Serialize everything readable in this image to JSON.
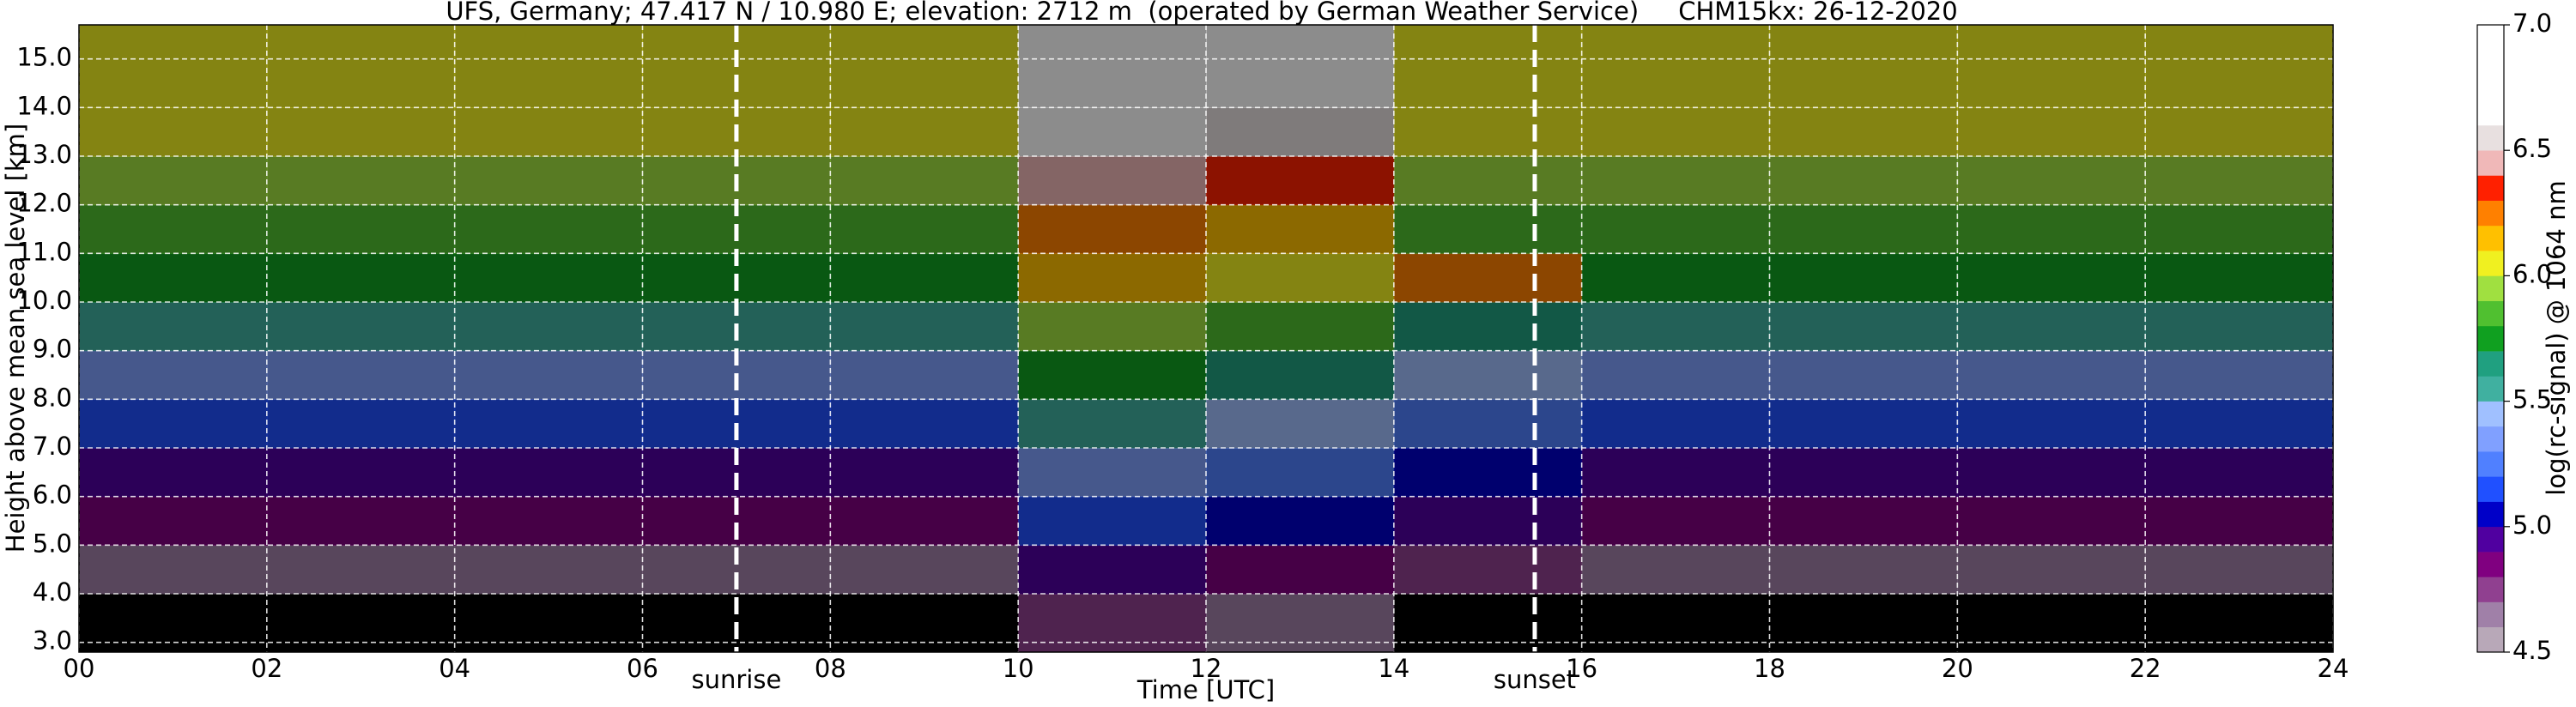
{
  "chart_data": {
    "type": "heatmap",
    "title": "UFS, Germany; 47.417 N / 10.980 E; elevation: 2712 m  (operated by German Weather Service)     CHM15kx: 26-12-2020",
    "x_label": "Time [UTC]",
    "y_label": "Height above mean sea level [km]",
    "xlim": [
      0,
      24
    ],
    "xticks": [
      {
        "value": 0,
        "label": "00"
      },
      {
        "value": 2,
        "label": "02"
      },
      {
        "value": 4,
        "label": "04"
      },
      {
        "value": 6,
        "label": "06"
      },
      {
        "value": 8,
        "label": "08"
      },
      {
        "value": 10,
        "label": "10"
      },
      {
        "value": 12,
        "label": "12"
      },
      {
        "value": 14,
        "label": "14"
      },
      {
        "value": 16,
        "label": "16"
      },
      {
        "value": 18,
        "label": "18"
      },
      {
        "value": 20,
        "label": "20"
      },
      {
        "value": 22,
        "label": "22"
      },
      {
        "value": 24,
        "label": "24"
      }
    ],
    "ylim": [
      2.8,
      15.7
    ],
    "yticks": [
      {
        "value": 3,
        "label": "3.0"
      },
      {
        "value": 4,
        "label": "4.0"
      },
      {
        "value": 5,
        "label": "5.0"
      },
      {
        "value": 6,
        "label": "6.0"
      },
      {
        "value": 7,
        "label": "7.0"
      },
      {
        "value": 8,
        "label": "8.0"
      },
      {
        "value": 9,
        "label": "9.0"
      },
      {
        "value": 10,
        "label": "10.0"
      },
      {
        "value": 11,
        "label": "11.0"
      },
      {
        "value": 12,
        "label": "12.0"
      },
      {
        "value": 13,
        "label": "13.0"
      },
      {
        "value": 14,
        "label": "14.0"
      },
      {
        "value": 15,
        "label": "15.0"
      }
    ],
    "grid": true,
    "x_edges": [
      0,
      2,
      4,
      6,
      8,
      10,
      12,
      14,
      16,
      18,
      20,
      22,
      24
    ],
    "y_edges": [
      2.8,
      4,
      5,
      6,
      7,
      8,
      9,
      10,
      11,
      12,
      13,
      14,
      15.7
    ],
    "z": [
      [
        null,
        null,
        null,
        null,
        null,
        4.7,
        4.6,
        null,
        null,
        null,
        null,
        null
      ],
      [
        4.6,
        4.6,
        4.6,
        4.6,
        4.6,
        4.9,
        4.8,
        4.7,
        4.6,
        4.6,
        4.6,
        4.6
      ],
      [
        4.8,
        4.8,
        4.8,
        4.8,
        4.8,
        5.1,
        5.0,
        4.9,
        4.8,
        4.8,
        4.8,
        4.8
      ],
      [
        4.9,
        4.9,
        4.9,
        4.9,
        4.9,
        5.3,
        5.2,
        5.0,
        4.9,
        4.9,
        4.9,
        4.9
      ],
      [
        5.1,
        5.1,
        5.1,
        5.1,
        5.1,
        5.5,
        5.4,
        5.2,
        5.1,
        5.1,
        5.1,
        5.1
      ],
      [
        5.3,
        5.3,
        5.3,
        5.3,
        5.3,
        5.7,
        5.6,
        5.4,
        5.3,
        5.3,
        5.3,
        5.3
      ],
      [
        5.5,
        5.5,
        5.5,
        5.5,
        5.5,
        5.9,
        5.8,
        5.6,
        5.5,
        5.5,
        5.5,
        5.5
      ],
      [
        5.7,
        5.7,
        5.7,
        5.7,
        5.7,
        6.1,
        6.0,
        6.2,
        5.7,
        5.7,
        5.7,
        5.7
      ],
      [
        5.8,
        5.8,
        5.8,
        5.8,
        5.8,
        6.2,
        6.1,
        5.8,
        5.8,
        5.8,
        5.8,
        5.8
      ],
      [
        5.9,
        5.9,
        5.9,
        5.9,
        5.9,
        6.4,
        6.3,
        5.9,
        5.9,
        5.9,
        5.9,
        5.9
      ],
      [
        6.0,
        6.0,
        6.0,
        6.0,
        6.0,
        6.6,
        6.5,
        6.0,
        6.0,
        6.0,
        6.0,
        6.0
      ],
      [
        6.0,
        6.0,
        6.0,
        6.0,
        6.0,
        6.8,
        6.6,
        6.0,
        6.0,
        6.0,
        6.0,
        6.0
      ]
    ],
    "annotations": [
      {
        "text": "sunrise",
        "x": 7.0
      },
      {
        "text": "sunset",
        "x": 15.5
      }
    ],
    "colorbar": {
      "label": "log(rc-signal) @ 1064 nm",
      "levels": [
        4.5,
        4.6,
        4.7,
        4.8,
        4.9,
        5.0,
        5.1,
        5.2,
        5.3,
        5.4,
        5.5,
        5.6,
        5.7,
        5.8,
        5.9,
        6.0,
        6.1,
        6.2,
        6.3,
        6.4,
        6.5,
        6.6,
        6.7,
        6.8,
        6.9,
        7.0
      ],
      "colors": [
        "#b8a8b8",
        "#a080a8",
        "#904090",
        "#800080",
        "#5000a0",
        "#0000c8",
        "#2050ff",
        "#5080ff",
        "#80a0ff",
        "#a0c0ff",
        "#40b0a0",
        "#20a080",
        "#10a020",
        "#50c030",
        "#a0e040",
        "#f0f020",
        "#ffc000",
        "#ff8000",
        "#ff2000",
        "#f0b8b8",
        "#e8e0e0",
        "#ffffff",
        "#ffffff",
        "#ffffff",
        "#ffffff"
      ],
      "ticks": [
        4.5,
        {
          "value": 5,
          "label": "5.0"
        },
        5.5,
        {
          "value": 6,
          "label": "6.0"
        },
        6.5,
        {
          "value": 7,
          "label": "7.0"
        }
      ]
    }
  }
}
